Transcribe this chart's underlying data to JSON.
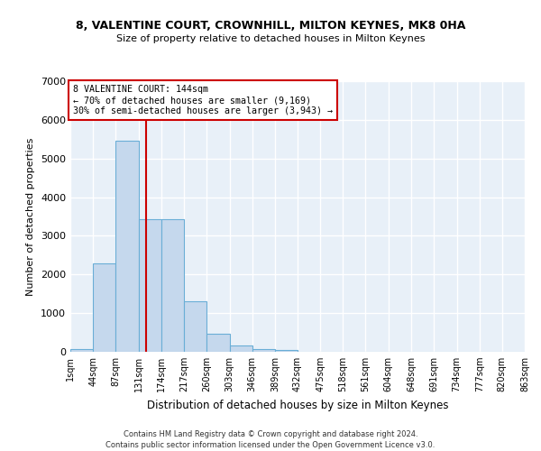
{
  "title_line1": "8, VALENTINE COURT, CROWNHILL, MILTON KEYNES, MK8 0HA",
  "title_line2": "Size of property relative to detached houses in Milton Keynes",
  "xlabel": "Distribution of detached houses by size in Milton Keynes",
  "ylabel": "Number of detached properties",
  "footnote1": "Contains HM Land Registry data © Crown copyright and database right 2024.",
  "footnote2": "Contains public sector information licensed under the Open Government Licence v3.0.",
  "bar_color": "#c5d8ed",
  "bar_edge_color": "#6aaed6",
  "background_color": "#e8f0f8",
  "grid_color": "#ffffff",
  "annotation_box_color": "#cc0000",
  "vline_color": "#cc0000",
  "annotation_line1": "8 VALENTINE COURT: 144sqm",
  "annotation_line2": "← 70% of detached houses are smaller (9,169)",
  "annotation_line3": "30% of semi-detached houses are larger (3,943) →",
  "property_size_sqm": 144,
  "bin_edges": [
    1,
    44,
    87,
    131,
    174,
    217,
    260,
    303,
    346,
    389,
    432,
    475,
    518,
    561,
    604,
    648,
    691,
    734,
    777,
    820,
    863
  ],
  "bin_counts": [
    75,
    2280,
    5470,
    3430,
    3430,
    1310,
    460,
    160,
    80,
    55,
    0,
    0,
    0,
    0,
    0,
    0,
    0,
    0,
    0,
    0
  ],
  "ylim": [
    0,
    7000
  ],
  "yticks": [
    0,
    1000,
    2000,
    3000,
    4000,
    5000,
    6000,
    7000
  ]
}
